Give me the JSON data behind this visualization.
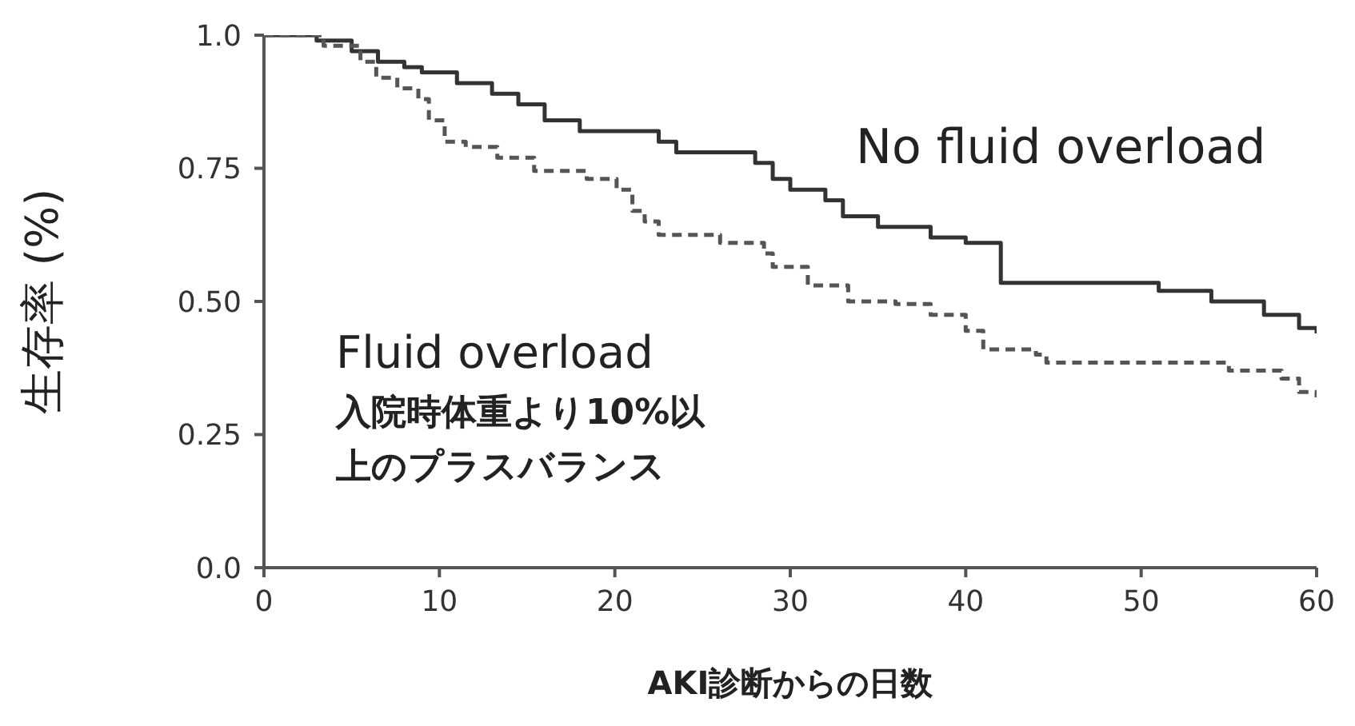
{
  "chart_data": {
    "type": "step",
    "xlabel": "AKI診断からの日数",
    "ylabel": "生存率 (%)",
    "xlim": [
      0,
      60
    ],
    "xticks": [
      0,
      10,
      20,
      30,
      40,
      50,
      60
    ],
    "ylim": [
      0,
      1
    ],
    "yticks": [
      {
        "value": 0,
        "label": "0.0"
      },
      {
        "value": 0.25,
        "label": "0.25"
      },
      {
        "value": 0.5,
        "label": "0.50"
      },
      {
        "value": 0.75,
        "label": "0.75"
      },
      {
        "value": 1,
        "label": "1.0"
      }
    ],
    "marker": "none",
    "series": [
      {
        "name": "No fluid overload",
        "color": "#333333",
        "line_style": "solid",
        "x": [
          0,
          3,
          5,
          6.5,
          8,
          9,
          11,
          13,
          14.5,
          16,
          18,
          22.5,
          23.5,
          28,
          29,
          30,
          32,
          33,
          35,
          38,
          40,
          42,
          51,
          54,
          57,
          59,
          60
        ],
        "values": [
          1.0,
          0.99,
          0.97,
          0.95,
          0.94,
          0.93,
          0.91,
          0.89,
          0.87,
          0.84,
          0.82,
          0.8,
          0.78,
          0.76,
          0.73,
          0.71,
          0.69,
          0.66,
          0.64,
          0.62,
          0.61,
          0.535,
          0.52,
          0.5,
          0.475,
          0.45,
          0.44
        ]
      },
      {
        "name": "Fluid overload",
        "color": "#555555",
        "line_style": "dashed",
        "x": [
          0,
          3.4,
          5.5,
          6.4,
          7.6,
          8.8,
          9.4,
          10.3,
          11.5,
          13.3,
          15.4,
          18.4,
          20.1,
          21,
          21.7,
          22.5,
          26,
          28.5,
          29,
          31,
          33.3,
          36,
          38,
          40,
          41,
          44,
          44.6,
          55,
          58,
          59,
          60
        ],
        "values": [
          1.0,
          0.98,
          0.95,
          0.92,
          0.9,
          0.88,
          0.84,
          0.8,
          0.79,
          0.77,
          0.745,
          0.73,
          0.71,
          0.67,
          0.65,
          0.625,
          0.61,
          0.59,
          0.565,
          0.53,
          0.5,
          0.495,
          0.475,
          0.445,
          0.41,
          0.4,
          0.385,
          0.37,
          0.355,
          0.33,
          0.32
        ]
      }
    ],
    "annotations": [
      "入院時体重より10%以上のプラスバランス"
    ]
  }
}
